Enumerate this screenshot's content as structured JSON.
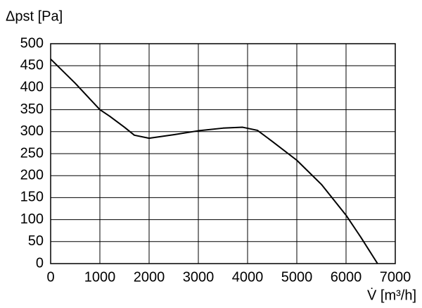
{
  "chart_data": {
    "type": "line",
    "ylabel": "Δpst [Pa]",
    "xlabel": "V̇ [m³/h]",
    "x": [
      0,
      500,
      1000,
      1200,
      1500,
      1700,
      2000,
      2500,
      3000,
      3500,
      3900,
      4200,
      4500,
      5000,
      5500,
      6000,
      6300,
      6640
    ],
    "values": [
      465,
      410,
      350,
      335,
      310,
      292,
      285,
      293,
      302,
      308,
      310,
      303,
      278,
      235,
      180,
      110,
      60,
      0
    ],
    "color": "#000000",
    "xlim": [
      0,
      7000
    ],
    "xticks": [
      0,
      1000,
      2000,
      3000,
      4000,
      5000,
      6000,
      7000
    ],
    "ylim": [
      0,
      500
    ],
    "yticks": [
      0,
      50,
      100,
      150,
      200,
      250,
      300,
      350,
      400,
      450,
      500
    ],
    "grid": true
  }
}
